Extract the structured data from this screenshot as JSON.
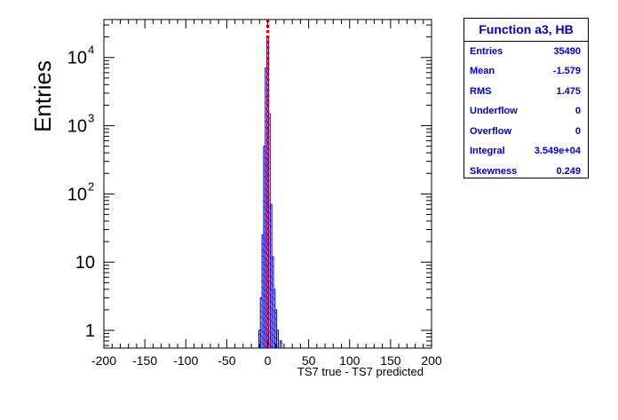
{
  "chart_data": {
    "type": "bar",
    "ylabel": "Entries",
    "xlabel": "TS7 true - TS7 predicted",
    "log_y": true,
    "xlim": [
      -200,
      200
    ],
    "ylim": [
      0.55,
      36000
    ],
    "x_ticks": [
      "-200",
      "-150",
      "-100",
      "-50",
      "0",
      "50",
      "100",
      "150",
      "200"
    ],
    "y_ticks": [
      {
        "value": 1,
        "base": "1",
        "exp": ""
      },
      {
        "value": 10,
        "base": "10",
        "exp": ""
      },
      {
        "value": 100,
        "base": "10",
        "exp": "2"
      },
      {
        "value": 1000,
        "base": "10",
        "exp": "3"
      },
      {
        "value": 10000,
        "base": "10",
        "exp": "4"
      }
    ],
    "bin_width": 2,
    "bins": [
      {
        "x": -10,
        "value": 1
      },
      {
        "x": -8,
        "value": 3
      },
      {
        "x": -6,
        "value": 25
      },
      {
        "x": -4,
        "value": 500
      },
      {
        "x": -2,
        "value": 7000
      },
      {
        "x": 0,
        "value": 20000
      },
      {
        "x": 2,
        "value": 1500
      },
      {
        "x": 4,
        "value": 70
      },
      {
        "x": 6,
        "value": 12
      },
      {
        "x": 8,
        "value": 4
      },
      {
        "x": 10,
        "value": 2
      },
      {
        "x": 12,
        "value": 1
      },
      {
        "x": 16,
        "value": 0.7
      }
    ],
    "reference_line": {
      "x": 0
    },
    "colors": {
      "histogram": "#0000cc",
      "reference_line": "#cc0000"
    }
  },
  "stats": {
    "title": "Function a3, HB",
    "rows": [
      {
        "label": "Entries",
        "value": "35490"
      },
      {
        "label": "Mean",
        "value": "-1.579"
      },
      {
        "label": "RMS",
        "value": "1.475"
      },
      {
        "label": "Underflow",
        "value": "0"
      },
      {
        "label": "Overflow",
        "value": "0"
      },
      {
        "label": "Integral",
        "value": "3.549e+04"
      },
      {
        "label": "Skewness",
        "value": "0.249"
      }
    ]
  }
}
